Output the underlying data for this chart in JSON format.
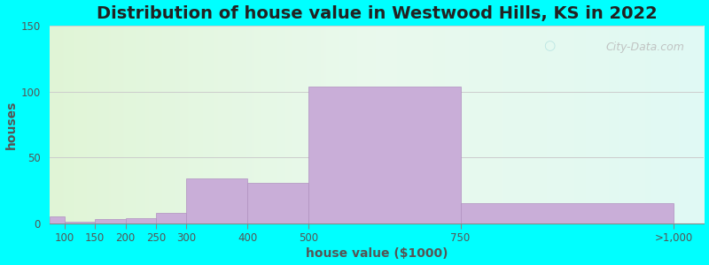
{
  "title": "Distribution of house value in Westwood Hills, KS in 2022",
  "xlabel": "house value ($1000)",
  "ylabel": "houses",
  "bar_left_edges": [
    75,
    100,
    150,
    200,
    250,
    300,
    400,
    500,
    750
  ],
  "bar_right_edges": [
    100,
    150,
    200,
    250,
    300,
    400,
    500,
    750,
    1100
  ],
  "bar_values": [
    5,
    1,
    3,
    4,
    8,
    34,
    31,
    104,
    15
  ],
  "tick_positions": [
    100,
    150,
    200,
    250,
    300,
    400,
    500,
    750,
    1100
  ],
  "tick_labels": [
    "100",
    "150",
    "200",
    "250",
    "300",
    "400",
    "500",
    "750",
    ">1,000"
  ],
  "bar_color": "#c9aed8",
  "bar_edgecolor": "#b090c0",
  "ylim": [
    0,
    150
  ],
  "yticks": [
    0,
    50,
    100,
    150
  ],
  "xlim": [
    75,
    1150
  ],
  "background_color": "#00ffff",
  "title_fontsize": 14,
  "axis_label_fontsize": 10,
  "tick_fontsize": 8.5,
  "watermark_text": "City-Data.com",
  "grid_color": "#cccccc",
  "tick_color": "#555555"
}
